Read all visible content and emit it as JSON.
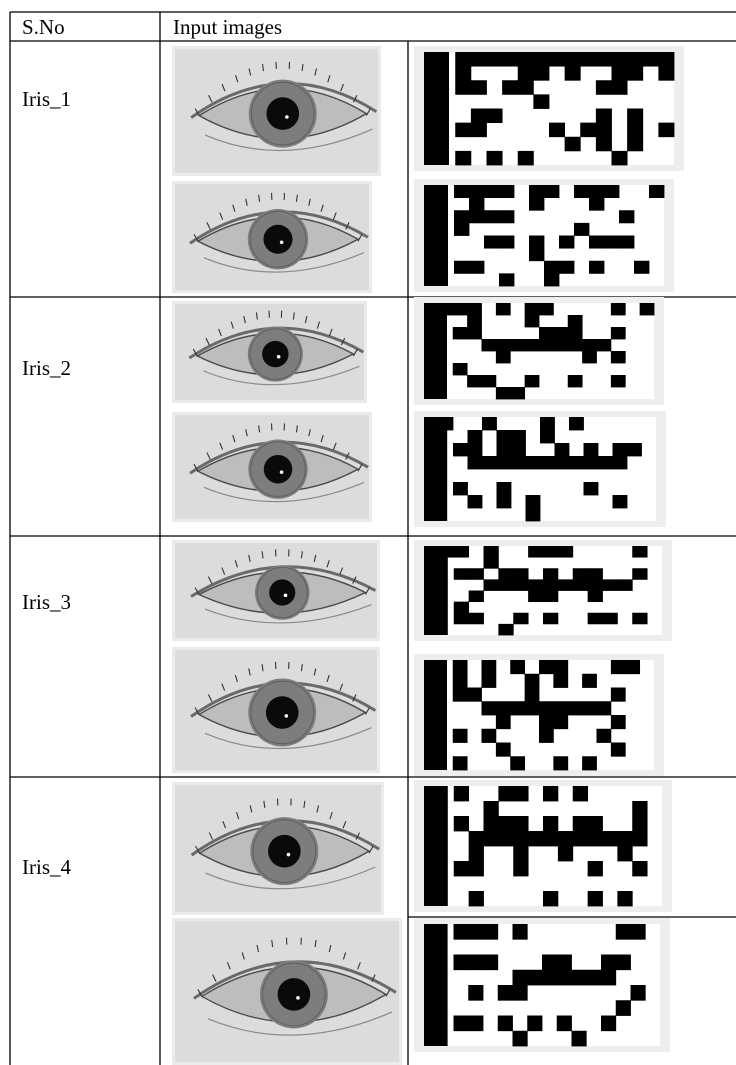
{
  "table": {
    "header": {
      "sno": "S.No",
      "images": "Input images"
    },
    "rows": [
      {
        "label": "Iris_1"
      },
      {
        "label": "Iris_2"
      },
      {
        "label": "Iris_3"
      },
      {
        "label": "Iris_4"
      }
    ]
  },
  "colors": {
    "rule": "#000000",
    "eye_bg": "#d9d9d9",
    "code_on": "#000000",
    "code_off": "#ffffff"
  },
  "iris_codes": [
    [
      "1100000000000000",
      "1101110010110010",
      "1100100111100111",
      "1111111011111111",
      "1110011111101011",
      "1100111101001010",
      "1111111110101011",
      "1101010111110111"
    ],
    [
      "1100001001000110",
      "1110111011101111",
      "1100001111111011",
      "1101111111011111",
      "1111001010100011",
      "1111111011111111",
      "1100111100101101",
      "1111101101111111"
    ],
    [
      "1000101001111010",
      "1110111011011111",
      "1100111100011011",
      "1111000000000111",
      "1111101111101011",
      "1101111111111111",
      "1110011011011011",
      "1111100111111111"
    ],
    [
      "1011011101011111",
      "1110100101111111",
      "1100100110101001",
      "1110000000000011",
      "1111111111111111",
      "1101101111101111",
      "1110101011111011",
      "1111111011111111"
    ],
    [
      "1001011000111101",
      "1111011111111111",
      "1100100101001101",
      "1111000000000011",
      "1110111001101111",
      "1101111111111111",
      "1100110101100101",
      "1111101111111111"
    ],
    [
      "1101010100111001",
      "1101011010101111",
      "1100111011111011",
      "1111000000000111",
      "1111101100111011",
      "1101011101110111",
      "1111101111111011",
      "1101110110101111"
    ],
    [
      "1101100101011111",
      "1111011111111101",
      "1101000101001101",
      "1110000000000001",
      "1110110110111011",
      "1100110111101101",
      "1111111111111111",
      "1110111101101011"
    ],
    [
      "1100010111111001",
      "1111111111111111",
      "1100011100110011",
      "1111110000000111",
      "1110100111111101",
      "1111111111111011",
      "1100101010110111",
      "1111110111011111"
    ]
  ]
}
